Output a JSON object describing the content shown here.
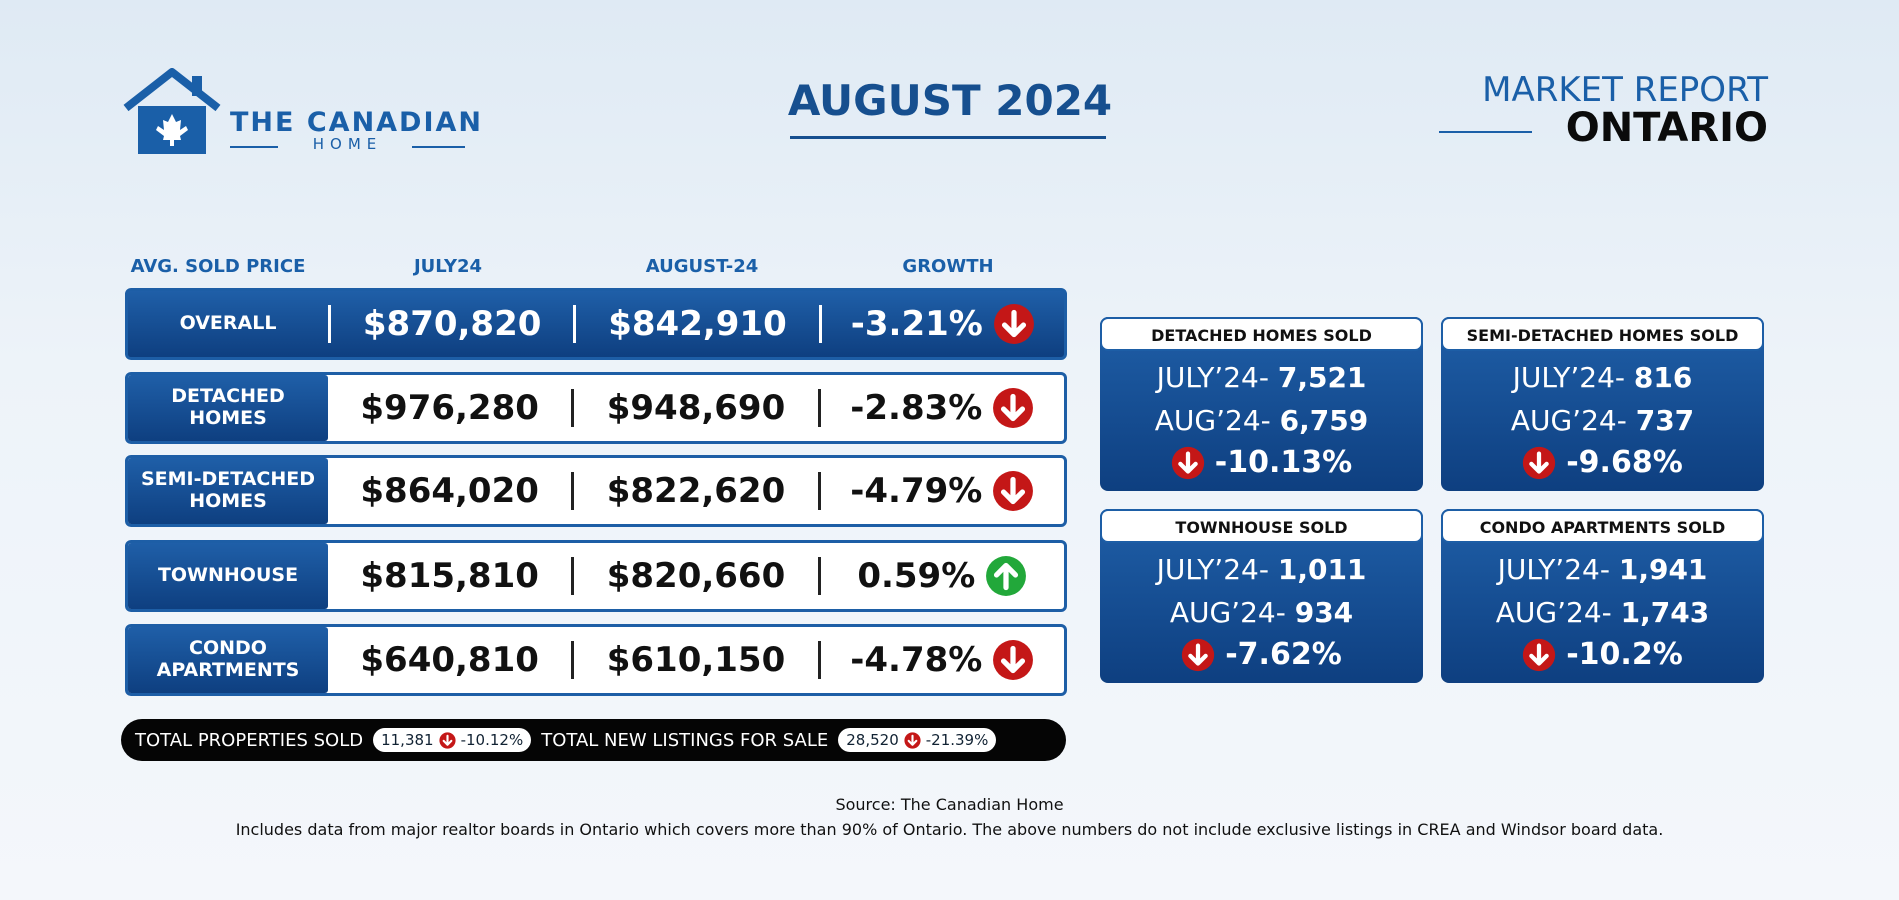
{
  "header": {
    "brand": "THE CANADIAN",
    "brand_sub": "HOME",
    "title": "AUGUST 2024",
    "report_label": "MARKET REPORT",
    "region": "ONTARIO"
  },
  "table": {
    "headers": [
      "AVG. SOLD PRICE",
      "JULY24",
      "AUGUST-24",
      "GROWTH"
    ],
    "rows": [
      [
        "OVERALL",
        "$870,820",
        "$842,910",
        "-3.21%"
      ],
      [
        "DETACHED HOMES",
        "$976,280",
        "$948,690",
        "-2.83%"
      ],
      [
        "SEMI-DETACHED HOMES",
        "$864,020",
        "$822,620",
        "-4.79%"
      ],
      [
        "TOWNHOUSE",
        "$815,810",
        "$820,660",
        "0.59%"
      ],
      [
        "CONDO APARTMENTS",
        "$640,810",
        "$610,150",
        "-4.78%"
      ]
    ]
  },
  "totals": {
    "sold_label": "TOTAL PROPERTIES SOLD",
    "sold_value": "11,381",
    "sold_change": "-10.12%",
    "listings_label": "TOTAL NEW LISTINGS FOR SALE",
    "listings_value": "28,520",
    "listings_change": "-21.39%"
  },
  "cards": [
    {
      "title": "DETACHED HOMES SOLD",
      "july_label": "JULY’24-",
      "july_value": "7,521",
      "aug_label": "AUG’24-",
      "aug_value": "6,759",
      "change": "-10.13%"
    },
    {
      "title": "SEMI-DETACHED HOMES SOLD",
      "july_label": "JULY’24-",
      "july_value": "816",
      "aug_label": "AUG’24-",
      "aug_value": "737",
      "change": "-9.68%"
    },
    {
      "title": "TOWNHOUSE SOLD",
      "july_label": "JULY’24-",
      "july_value": "1,011",
      "aug_label": "AUG’24-",
      "aug_value": "934",
      "change": "-7.62%"
    },
    {
      "title": "CONDO APARTMENTS SOLD",
      "july_label": "JULY’24-",
      "july_value": "1,941",
      "aug_label": "AUG’24-",
      "aug_value": "1,743",
      "change": "-10.2%"
    }
  ],
  "footer": {
    "source": "Source: The Canadian Home",
    "note": "Includes data from major realtor boards in Ontario which covers more than 90% of Ontario. The above numbers do not include exclusive listings in CREA and Windsor board data."
  }
}
